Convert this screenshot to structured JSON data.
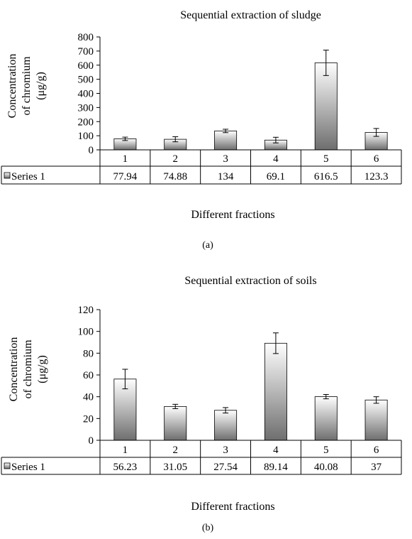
{
  "chart_data": [
    {
      "type": "bar",
      "panel_label": "(a)",
      "title": "Sequential extraction of sludge",
      "xlabel": "Different fractions",
      "ylabel_lines": [
        "Concentration",
        "of chromium",
        "(μg/g)"
      ],
      "categories": [
        "1",
        "2",
        "3",
        "4",
        "5",
        "6"
      ],
      "series": [
        {
          "name": "Series 1",
          "values": [
            77.94,
            74.88,
            134,
            69.1,
            616.5,
            123.3
          ],
          "value_labels": [
            "77.94",
            "74.88",
            "134",
            "69.1",
            "616.5",
            "123.3"
          ],
          "errors": [
            12,
            18,
            12,
            20,
            90,
            28
          ]
        }
      ],
      "ylim": [
        0,
        800
      ],
      "yticks": [
        0,
        100,
        200,
        300,
        400,
        500,
        600,
        700,
        800
      ],
      "grid": false,
      "legend": "data-table"
    },
    {
      "type": "bar",
      "panel_label": "(b)",
      "title": "Sequential extraction of soils",
      "xlabel": "Different fractions",
      "ylabel_lines": [
        "Concentration",
        "of chromium",
        "(μg/g)"
      ],
      "categories": [
        "1",
        "2",
        "3",
        "4",
        "5",
        "6"
      ],
      "series": [
        {
          "name": "Series 1",
          "values": [
            56.23,
            31.05,
            27.54,
            89.14,
            40.08,
            37
          ],
          "value_labels": [
            "56.23",
            "31.05",
            "27.54",
            "89.14",
            "40.08",
            "37"
          ],
          "errors": [
            9,
            2,
            2.5,
            9.5,
            2,
            3
          ]
        }
      ],
      "ylim": [
        0,
        120
      ],
      "yticks": [
        0,
        20,
        40,
        60,
        80,
        100,
        120
      ],
      "grid": false,
      "legend": "data-table"
    }
  ],
  "colors": {
    "bar_top": "#ffffff",
    "bar_bottom": "#6e6e6e",
    "stroke": "#000000"
  }
}
